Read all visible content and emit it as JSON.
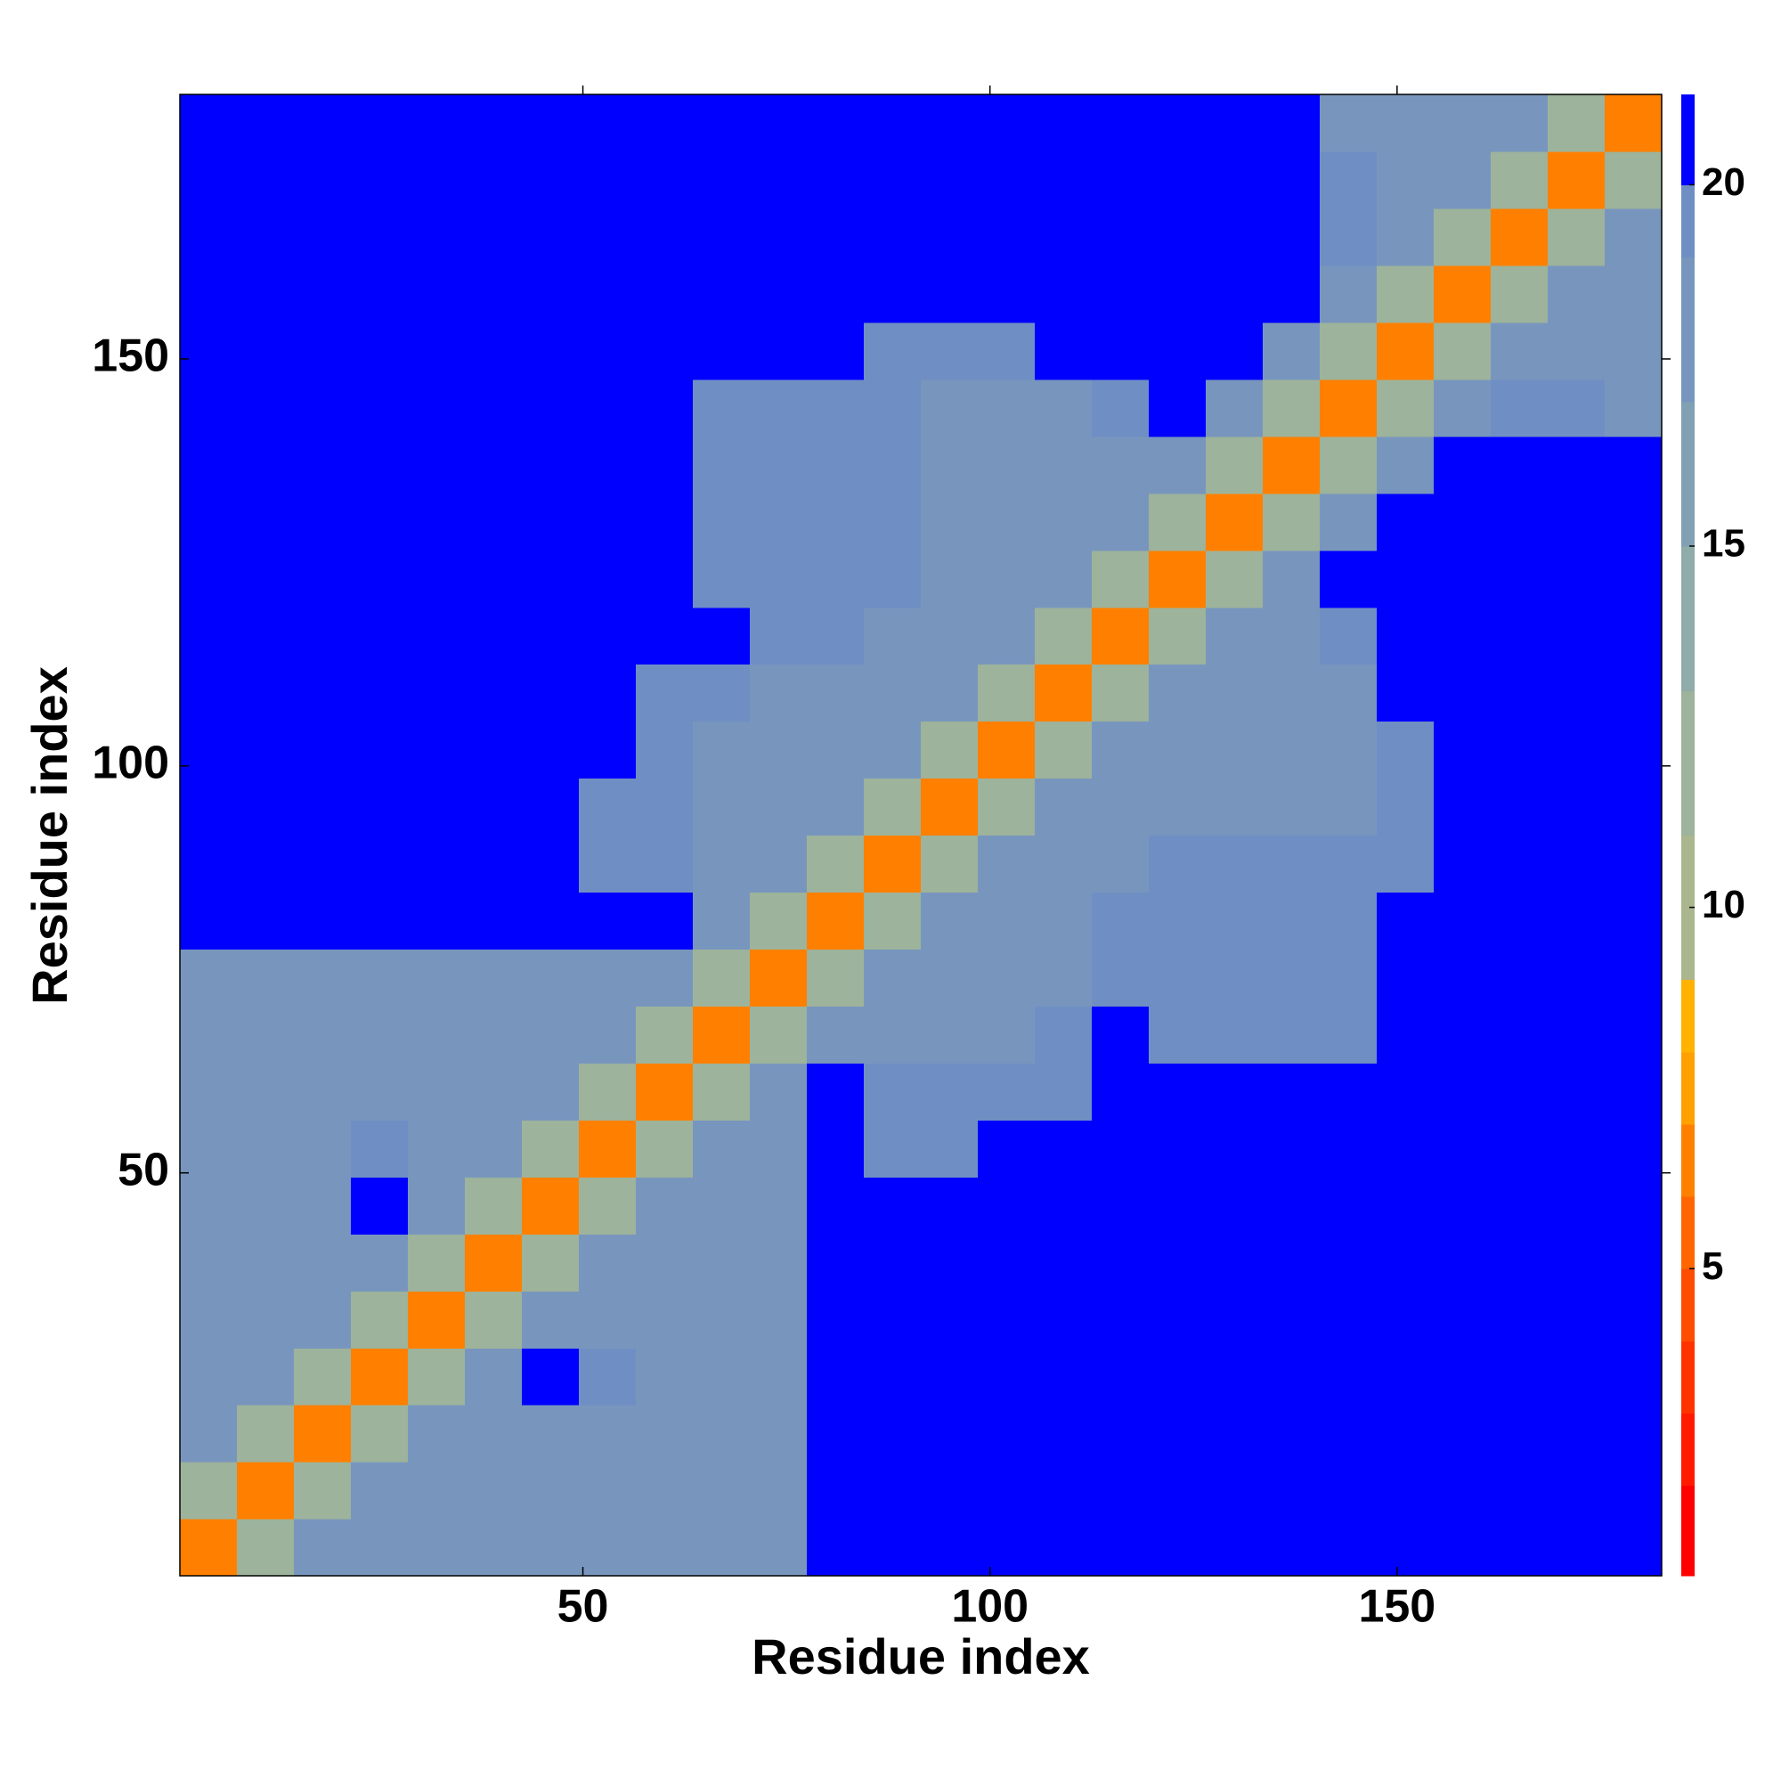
{
  "chart_data": {
    "type": "heatmap",
    "xlabel": "Residue index",
    "ylabel": "Residue index",
    "xlim": [
      0.5,
      182.5
    ],
    "ylim": [
      0.5,
      182.5
    ],
    "xticks": [
      50,
      100,
      150
    ],
    "yticks": [
      50,
      100,
      150
    ],
    "x_edges": [
      0.5,
      7.5,
      14.5,
      21.5,
      28.5,
      35.5,
      42.5,
      49.5,
      56.5,
      63.5,
      70.5,
      77.5,
      84.5,
      91.5,
      98.5,
      105.5,
      112.5,
      119.5,
      126.5,
      133.5,
      140.5,
      147.5,
      154.5,
      161.5,
      168.5,
      175.5,
      182.5
    ],
    "y_edges": [
      0.5,
      7.5,
      14.5,
      21.5,
      28.5,
      35.5,
      42.5,
      49.5,
      56.5,
      63.5,
      70.5,
      77.5,
      84.5,
      91.5,
      98.5,
      105.5,
      112.5,
      119.5,
      126.5,
      133.5,
      140.5,
      147.5,
      154.5,
      161.5,
      168.5,
      175.5,
      182.5
    ],
    "values": [
      [
        6,
        12,
        17,
        17,
        17,
        17,
        17,
        17,
        17,
        17,
        18,
        21,
        21,
        21,
        21,
        21,
        21,
        21,
        21,
        21,
        21,
        21,
        21,
        21,
        21,
        21
      ],
      [
        12,
        6,
        12,
        17,
        17,
        17,
        17,
        17,
        17,
        17,
        18,
        21,
        21,
        21,
        21,
        21,
        21,
        21,
        21,
        21,
        21,
        21,
        21,
        21,
        21,
        21
      ],
      [
        17,
        12,
        6,
        12,
        17,
        17,
        17,
        17,
        17,
        17,
        17,
        21,
        21,
        21,
        21,
        21,
        21,
        21,
        21,
        21,
        21,
        21,
        21,
        21,
        21,
        21
      ],
      [
        17,
        17,
        12,
        6,
        12,
        17,
        21,
        19,
        17,
        17,
        17,
        21,
        21,
        21,
        21,
        21,
        21,
        21,
        21,
        21,
        21,
        21,
        21,
        21,
        21,
        21
      ],
      [
        17,
        17,
        17,
        12,
        6,
        12,
        17,
        17,
        17,
        17,
        17,
        21,
        21,
        21,
        21,
        21,
        21,
        21,
        21,
        21,
        21,
        21,
        21,
        21,
        21,
        21
      ],
      [
        17,
        17,
        17,
        17,
        12,
        6,
        12,
        17,
        17,
        17,
        17,
        21,
        21,
        21,
        21,
        21,
        21,
        21,
        21,
        21,
        21,
        21,
        21,
        21,
        21,
        21
      ],
      [
        17,
        17,
        17,
        21,
        17,
        12,
        6,
        12,
        17,
        17,
        17,
        21,
        21,
        21,
        21,
        21,
        21,
        21,
        21,
        21,
        21,
        21,
        21,
        21,
        21,
        21
      ],
      [
        17,
        17,
        17,
        19,
        17,
        17,
        12,
        6,
        12,
        17,
        17,
        21,
        19.5,
        19.5,
        21,
        21,
        21,
        21,
        21,
        21,
        21,
        21,
        21,
        21,
        21,
        21
      ],
      [
        17,
        17,
        17,
        17,
        17,
        17,
        17,
        12,
        6,
        12,
        17,
        21,
        19,
        19,
        19,
        19.5,
        21,
        21,
        21,
        21,
        21,
        21,
        21,
        21,
        21,
        21
      ],
      [
        17,
        17,
        17,
        17,
        17,
        17,
        17,
        17,
        12,
        6,
        12,
        17,
        18,
        18,
        18,
        19,
        21,
        19.5,
        19.5,
        19.5,
        19.5,
        21,
        21,
        21,
        21,
        21
      ],
      [
        18,
        18,
        17,
        17,
        17,
        17,
        17,
        17,
        17,
        12,
        6,
        12,
        17,
        18,
        17,
        18,
        19.5,
        19.5,
        19.5,
        19.5,
        19.5,
        21,
        21,
        21,
        21,
        21
      ],
      [
        21,
        21,
        21,
        21,
        21,
        21,
        21,
        21,
        21,
        17,
        12,
        6,
        12,
        17,
        17,
        18,
        19.5,
        19.5,
        19.5,
        19.5,
        19.5,
        21,
        21,
        21,
        21,
        21
      ],
      [
        21,
        21,
        21,
        21,
        21,
        21,
        21,
        19.5,
        19,
        18,
        17,
        12,
        6,
        12,
        17,
        17,
        18,
        19,
        19,
        19,
        19,
        19,
        21,
        21,
        21,
        21
      ],
      [
        21,
        21,
        21,
        21,
        21,
        21,
        21,
        19.5,
        19,
        18,
        18,
        17,
        12,
        6,
        12,
        17,
        18,
        18,
        18,
        18,
        18,
        19,
        21,
        21,
        21,
        21
      ],
      [
        21,
        21,
        21,
        21,
        21,
        21,
        21,
        21,
        19,
        18,
        17,
        17,
        17,
        12,
        6,
        12,
        17,
        17,
        17,
        17,
        18,
        19.5,
        21,
        21,
        21,
        21
      ],
      [
        21,
        21,
        21,
        21,
        21,
        21,
        21,
        21,
        19.5,
        19,
        18,
        18,
        17,
        17,
        12,
        6,
        12,
        17,
        17,
        17,
        18,
        21,
        21,
        21,
        21,
        21
      ],
      [
        21,
        21,
        21,
        21,
        21,
        21,
        21,
        21,
        21,
        21,
        19.5,
        19.5,
        18,
        18,
        17,
        12,
        6,
        12,
        17,
        18,
        19.5,
        21,
        21,
        21,
        21,
        21
      ],
      [
        21,
        21,
        21,
        21,
        21,
        21,
        21,
        21,
        21,
        19.5,
        19.5,
        19.5,
        19,
        18,
        17,
        17,
        12,
        6,
        12,
        17,
        21,
        21,
        21,
        21,
        21,
        21
      ],
      [
        21,
        21,
        21,
        21,
        21,
        21,
        21,
        21,
        21,
        19.5,
        19.5,
        19.5,
        19,
        18,
        17,
        17,
        17,
        12,
        6,
        12,
        17,
        21,
        21,
        21,
        21,
        21
      ],
      [
        21,
        21,
        21,
        21,
        21,
        21,
        21,
        21,
        21,
        19.5,
        19.5,
        19.5,
        19,
        18,
        17,
        17,
        18,
        17,
        12,
        6,
        12,
        17,
        21,
        21,
        21,
        21
      ],
      [
        21,
        21,
        21,
        21,
        21,
        21,
        21,
        21,
        21,
        19.5,
        19.5,
        19.5,
        19,
        18,
        18,
        18,
        19.5,
        21,
        17,
        12,
        6,
        12,
        17,
        19.5,
        19.5,
        18
      ],
      [
        21,
        21,
        21,
        21,
        21,
        21,
        21,
        21,
        21,
        21,
        21,
        21,
        19,
        19,
        19.5,
        21,
        21,
        21,
        21,
        17,
        12,
        6,
        12,
        17,
        17,
        17
      ],
      [
        21,
        21,
        21,
        21,
        21,
        21,
        21,
        21,
        21,
        21,
        21,
        21,
        21,
        21,
        21,
        21,
        21,
        21,
        21,
        21,
        17,
        12,
        6,
        12,
        17,
        17
      ],
      [
        21,
        21,
        21,
        21,
        21,
        21,
        21,
        21,
        21,
        21,
        21,
        21,
        21,
        21,
        21,
        21,
        21,
        21,
        21,
        21,
        19.5,
        17,
        12,
        6,
        12,
        17
      ],
      [
        21,
        21,
        21,
        21,
        21,
        21,
        21,
        21,
        21,
        21,
        21,
        21,
        21,
        21,
        21,
        21,
        21,
        21,
        21,
        21,
        19.5,
        17,
        17,
        12,
        6,
        12
      ],
      [
        21,
        21,
        21,
        21,
        21,
        21,
        21,
        21,
        21,
        21,
        21,
        21,
        21,
        21,
        21,
        21,
        21,
        21,
        21,
        21,
        18,
        17,
        17,
        17,
        12,
        6
      ]
    ],
    "clim": [
      0.75,
      21.25
    ],
    "cticks": [
      5,
      10,
      15,
      20
    ],
    "colorbar_levels": [
      0.75,
      2,
      3,
      4,
      5,
      6,
      7,
      8,
      9,
      11,
      13,
      15,
      17,
      19,
      20,
      21.25
    ],
    "colorbar_colors": [
      "#ff0000",
      "#ff1a00",
      "#ff3300",
      "#ff4d00",
      "#ff6600",
      "#ff8000",
      "#ffa000",
      "#ffb300",
      "#a9b68e",
      "#9db39b",
      "#8fabaa",
      "#82a0b4",
      "#7896bd",
      "#6f8fc4",
      "#0000ff"
    ]
  }
}
